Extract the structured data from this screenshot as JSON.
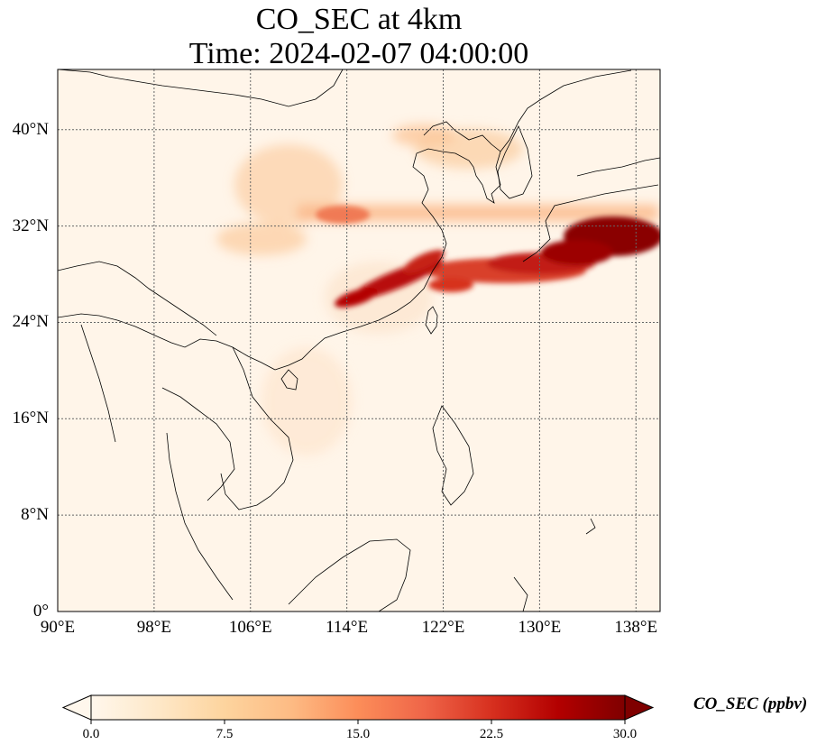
{
  "title": {
    "line1": "CO_SEC at 4km",
    "line2": "Time: 2024-02-07 04:00:00"
  },
  "map": {
    "lon_range": [
      90,
      140
    ],
    "lat_range": [
      0,
      45
    ],
    "x_ticks": [
      {
        "value": 90,
        "label": "90°E"
      },
      {
        "value": 98,
        "label": "98°E"
      },
      {
        "value": 106,
        "label": "106°E"
      },
      {
        "value": 114,
        "label": "114°E"
      },
      {
        "value": 122,
        "label": "122°E"
      },
      {
        "value": 130,
        "label": "130°E"
      },
      {
        "value": 138,
        "label": "138°E"
      }
    ],
    "y_ticks": [
      {
        "value": 0,
        "label": "0°"
      },
      {
        "value": 8,
        "label": "8°N"
      },
      {
        "value": 16,
        "label": "16°N"
      },
      {
        "value": 24,
        "label": "24°N"
      },
      {
        "value": 32,
        "label": "32°N"
      },
      {
        "value": 40,
        "label": "40°N"
      }
    ],
    "gridlines": true,
    "colormap": [
      "#fff7ec",
      "#fee8c8",
      "#fdd49e",
      "#fdbb84",
      "#fc8d59",
      "#ef6548",
      "#d7301f",
      "#b30000",
      "#7f0000"
    ]
  },
  "colorbar": {
    "label": "CO_SEC (ppbv)",
    "min": 0,
    "max": 30,
    "ticks": [
      "0.0",
      "7.5",
      "15.0",
      "22.5",
      "30.0"
    ],
    "extend": "both"
  }
}
